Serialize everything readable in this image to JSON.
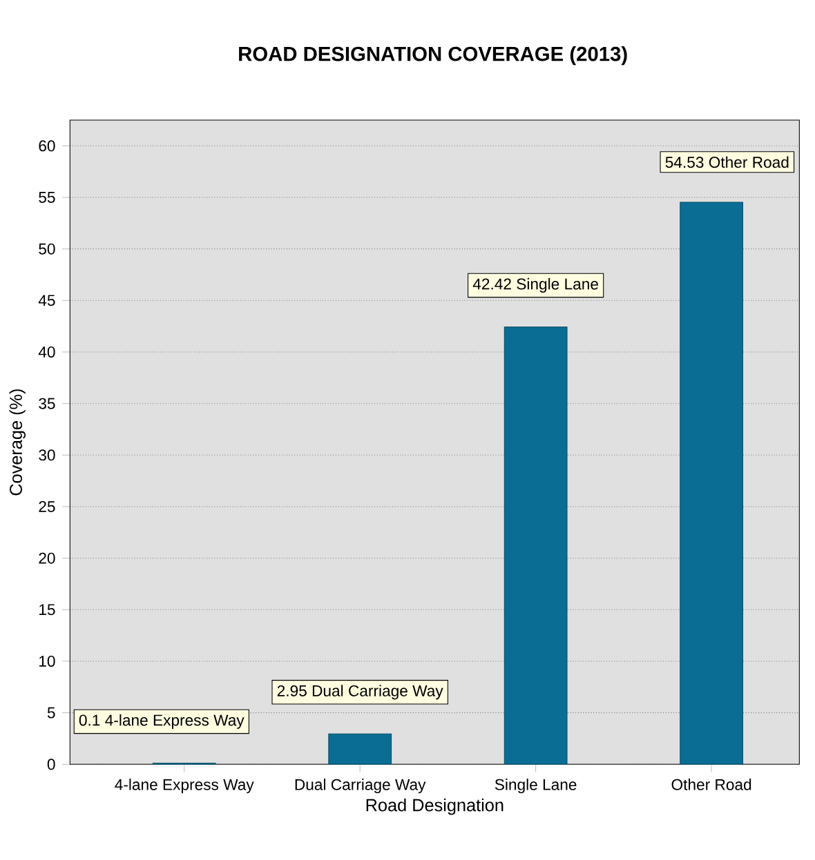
{
  "chart_data": {
    "type": "bar",
    "title": "ROAD DESIGNATION COVERAGE (2013)",
    "xlabel": "Road Designation",
    "ylabel": "Coverage (%)",
    "categories": [
      "4-lane Express Way",
      "Dual Carriage Way",
      "Single Lane",
      "Other Road"
    ],
    "values": [
      0.1,
      2.95,
      42.42,
      54.53
    ],
    "value_labels": [
      "0.1 4-lane Express Way",
      "2.95 Dual Carriage Way",
      "42.42 Single Lane",
      "54.53 Other Road"
    ],
    "color": "#0a6e94",
    "ylim": [
      0,
      62.5
    ],
    "yticks": [
      0,
      5,
      10,
      15,
      20,
      25,
      30,
      35,
      40,
      45,
      50,
      55,
      60
    ],
    "grid": "y"
  }
}
